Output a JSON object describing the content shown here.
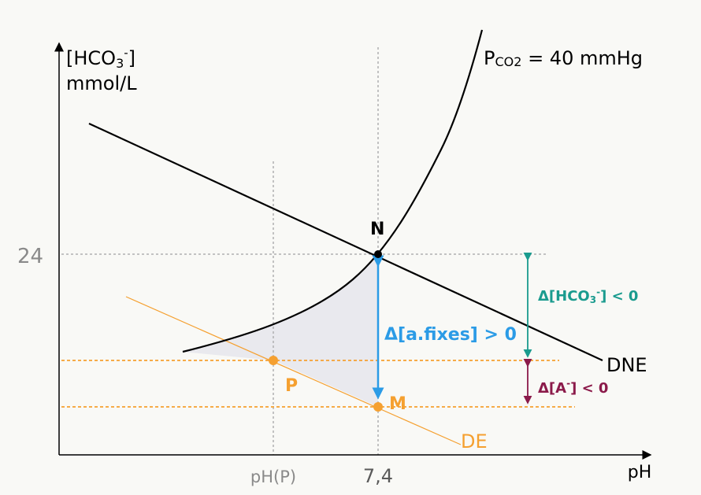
{
  "y_axis": {
    "label_line1_main": "[HCO",
    "label_line1_sub": "3",
    "label_line1_sup": "-",
    "label_line1_end": "]",
    "label_line2": "mmol/L",
    "tick_24": "24"
  },
  "x_axis": {
    "label": "pH",
    "tick_ph_p": "pH(P)",
    "tick_74": "7,4"
  },
  "curves": {
    "pco2_label_main": "P",
    "pco2_label_sub": "CO2",
    "pco2_label_rest": " = 40 mmHg",
    "dne_label": "DNE",
    "de_label": "DE"
  },
  "points": {
    "n_label": "N",
    "p_label": "P",
    "m_label": "M"
  },
  "annotations": {
    "a_fixes": "Δ[a.fixes] > 0",
    "hco3_main": "Δ[HCO",
    "hco3_sub": "3",
    "hco3_sup": "-",
    "hco3_end": "] < 0",
    "a_minus_main": "Δ[A",
    "a_minus_sup": "-",
    "a_minus_end": "] < 0"
  },
  "colors": {
    "axis": "#000000",
    "guide": "#b0b0b0",
    "orange": "#f5a030",
    "blue": "#2b9be6",
    "teal": "#1a9b8e",
    "maroon": "#8b1a4a",
    "shade": "#e9e9ee",
    "gray_text": "#7a7a7a"
  }
}
